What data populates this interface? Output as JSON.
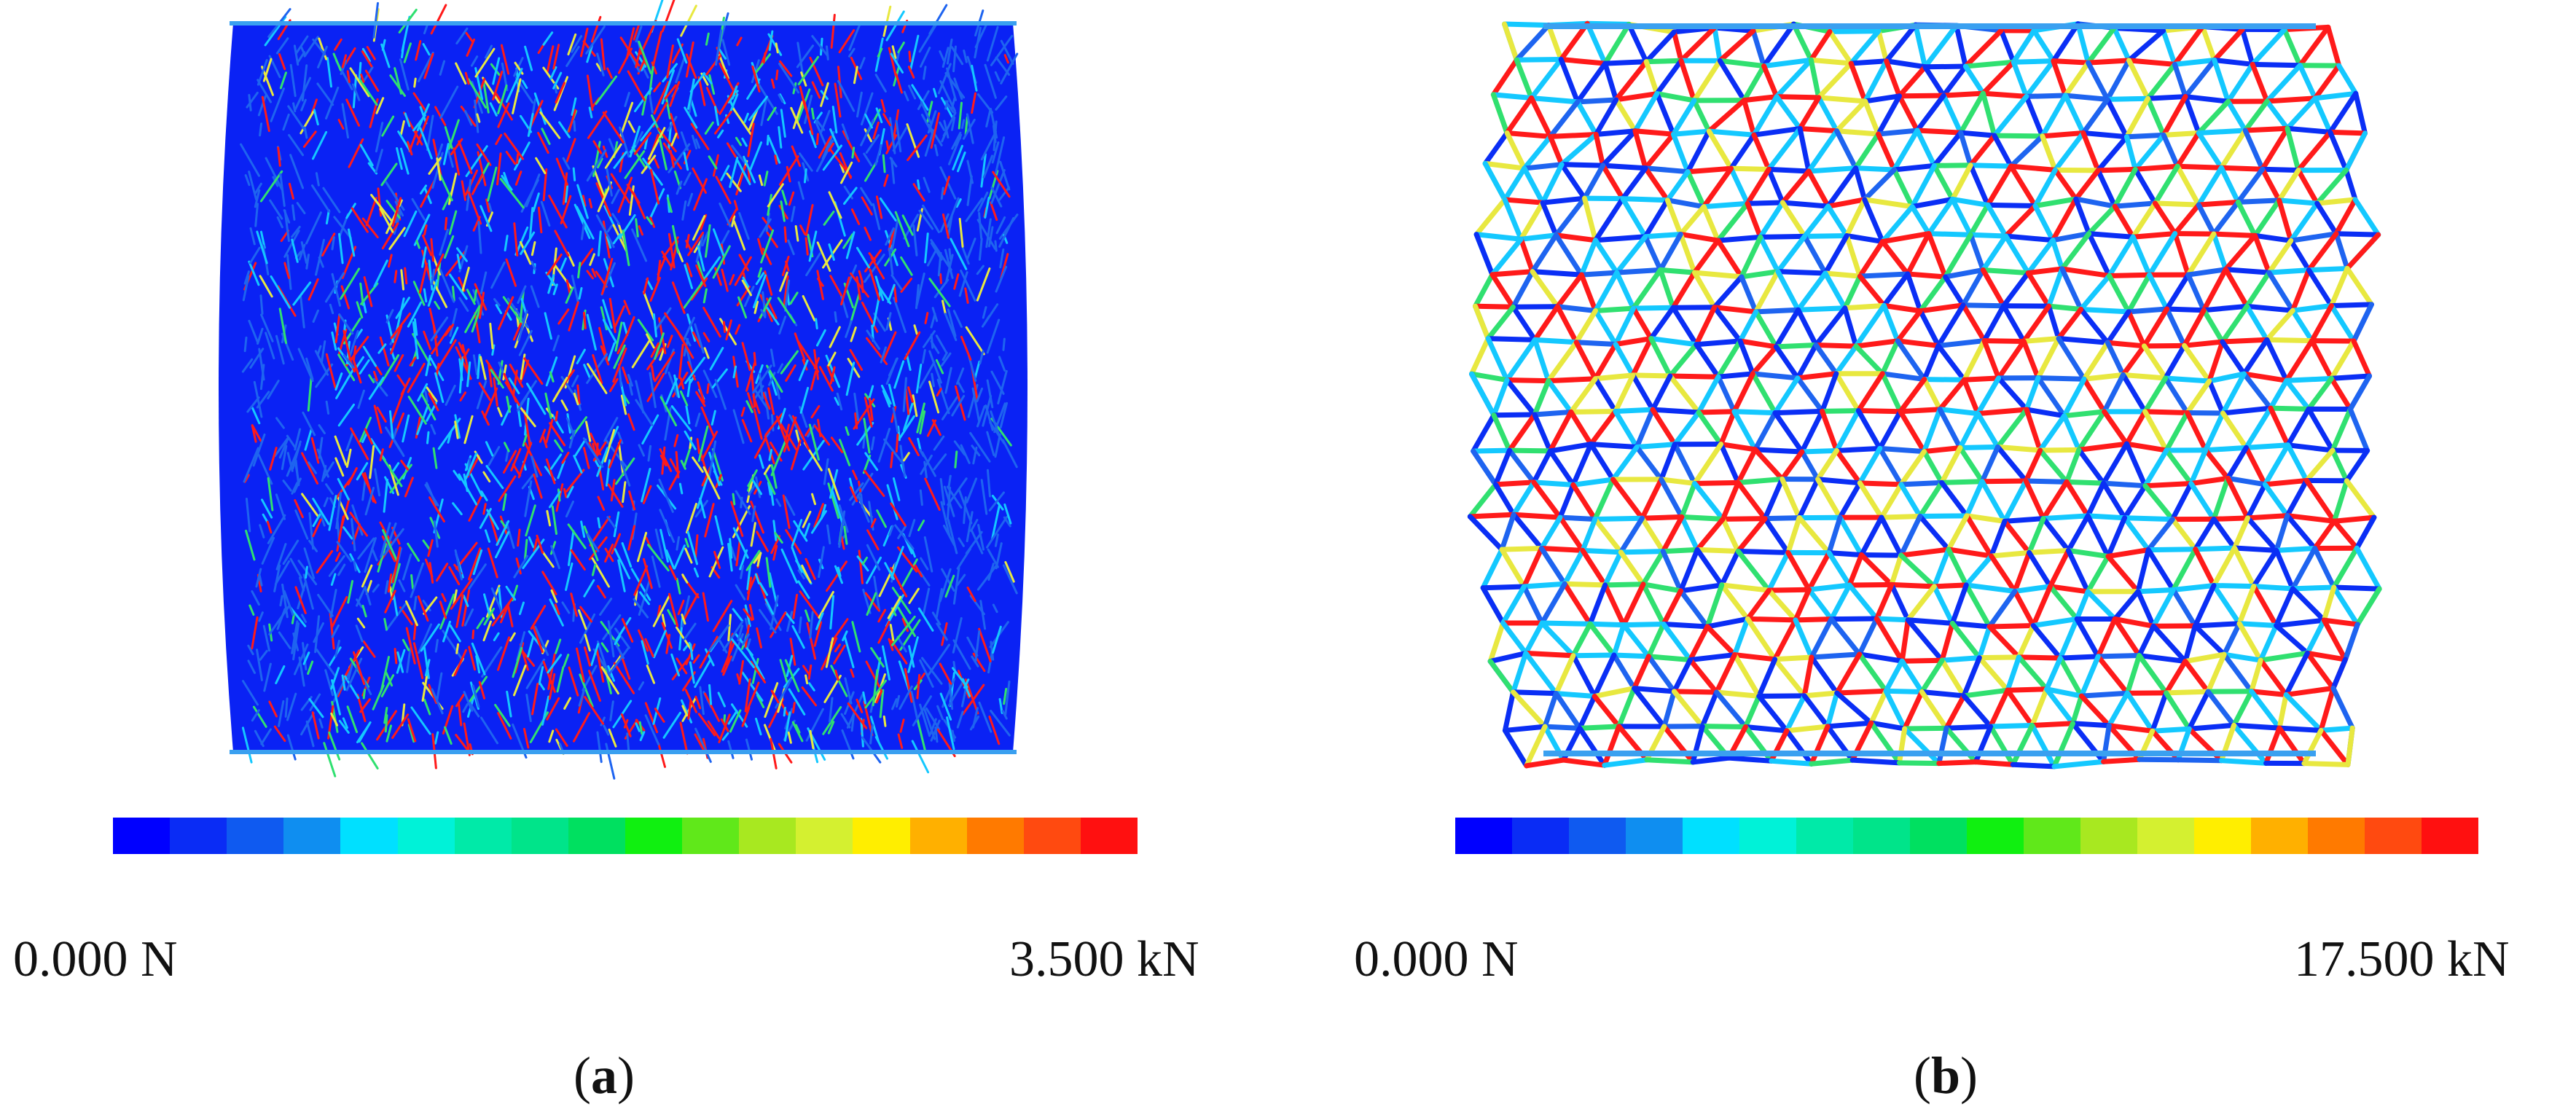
{
  "panels": [
    {
      "id": "a",
      "caption_letter": "a",
      "scale_min": "0.000 N",
      "scale_max": "3.500 kN"
    },
    {
      "id": "b",
      "caption_letter": "b",
      "scale_min": "0.000 N",
      "scale_max": "17.500 kN"
    }
  ],
  "colormap": [
    "#0000ff",
    "#0a2cf5",
    "#0f5af0",
    "#0f8ef0",
    "#00e0ff",
    "#00f2d8",
    "#00eaa8",
    "#00e48a",
    "#00e060",
    "#10f010",
    "#60e81a",
    "#a8e820",
    "#d4f030",
    "#ffee00",
    "#ffb000",
    "#ff7a00",
    "#ff4a10",
    "#ff1010"
  ],
  "force_colors": {
    "low": "#0a2ef5",
    "cyan": "#14c8ff",
    "mid_blue": "#1e64f0",
    "green": "#30e070",
    "yellow": "#e8e840",
    "high": "#ff1a1a"
  }
}
